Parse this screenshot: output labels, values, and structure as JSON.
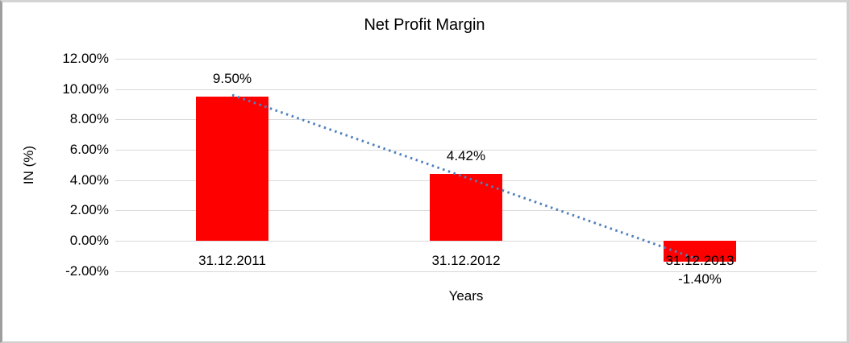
{
  "chart_data": {
    "type": "bar",
    "title": "Net Profit Margin",
    "xlabel": "Years",
    "ylabel": "IN (%)",
    "categories": [
      "31.12.2011",
      "31.12.2012",
      "31.12.2013"
    ],
    "values": [
      9.5,
      4.42,
      -1.4
    ],
    "data_labels": [
      "9.50%",
      "4.42%",
      "-1.40%"
    ],
    "ytick_values": [
      12,
      10,
      8,
      6,
      4,
      2,
      0,
      -2
    ],
    "ytick_labels": [
      "12.00%",
      "10.00%",
      "8.00%",
      "6.00%",
      "4.00%",
      "2.00%",
      "0.00%",
      "-2.00%"
    ],
    "ylim": [
      -2,
      12
    ],
    "grid": true,
    "legend": "none",
    "bar_color": "#ff0000",
    "gridline_color": "#d9d9d9",
    "trendline": {
      "style": "dotted",
      "color": "#4f81bd",
      "start_value": 9.61,
      "end_value": -1.27
    }
  }
}
